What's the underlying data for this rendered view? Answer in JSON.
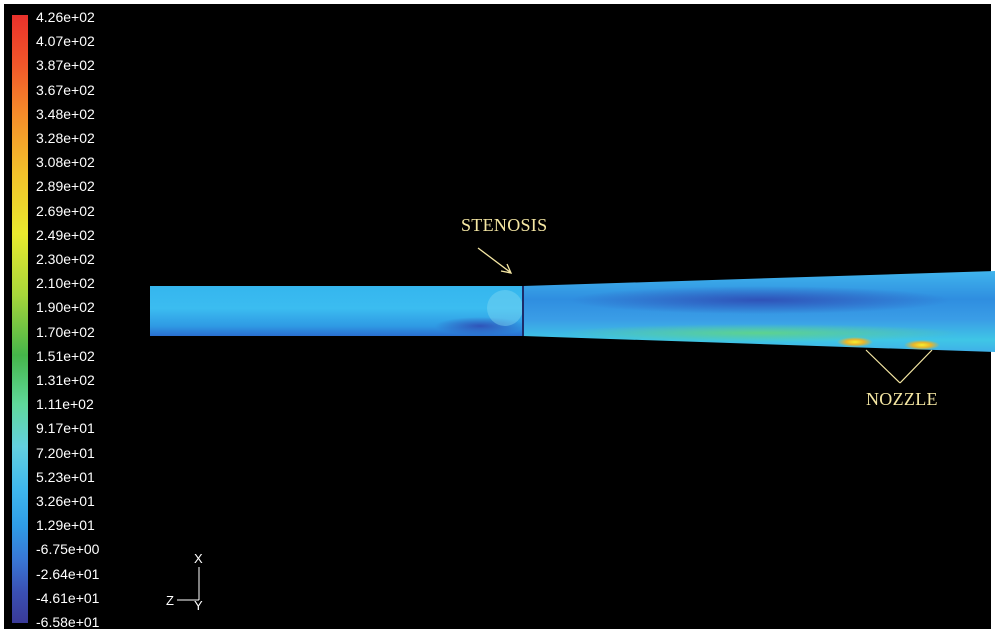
{
  "legend": {
    "ticks": [
      "4.26e+02",
      "4.07e+02",
      "3.87e+02",
      "3.67e+02",
      "3.48e+02",
      "3.28e+02",
      "3.08e+02",
      "2.89e+02",
      "2.69e+02",
      "2.49e+02",
      "2.30e+02",
      "2.10e+02",
      "1.90e+02",
      "1.70e+02",
      "1.51e+02",
      "1.31e+02",
      "1.11e+02",
      "9.17e+01",
      "7.20e+01",
      "5.23e+01",
      "3.26e+01",
      "1.29e+01",
      "-6.75e+00",
      "-2.64e+01",
      "-4.61e+01",
      "-6.58e+01"
    ],
    "colors": {
      "max": "#e8312b",
      "min": "#3a3a98"
    }
  },
  "annotations": {
    "stenosis": "STENOSIS",
    "nozzle": "NOZZLE"
  },
  "axes": {
    "x": "X",
    "y": "Y",
    "z": "Z"
  },
  "colors": {
    "background": "#000000",
    "annotation": "#f5e7a3"
  }
}
